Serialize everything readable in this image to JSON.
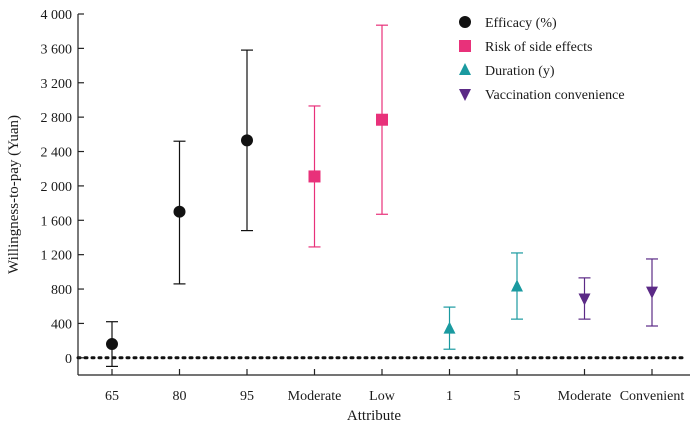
{
  "chart_data": {
    "type": "scatter",
    "title": "",
    "xlabel": "Attribute",
    "ylabel": "Willingness-to-pay (Yuan)",
    "ylim": [
      -200,
      4000
    ],
    "yticks": [
      0,
      400,
      800,
      1200,
      1600,
      2000,
      2400,
      2800,
      3200,
      3600,
      4000
    ],
    "ytick_labels": [
      "0",
      "400",
      "800",
      "1 200",
      "1 600",
      "2 000",
      "2 400",
      "2 800",
      "3 200",
      "3 600",
      "4 000"
    ],
    "categories": [
      "65",
      "80",
      "95",
      "Moderate",
      "Low",
      "1",
      "5",
      "Moderate",
      "Convenient"
    ],
    "reference_line": {
      "y": 0,
      "style": "dotted"
    },
    "grid": false,
    "legend_position": "top-right",
    "series": [
      {
        "name": "Efficacy (%)",
        "color": "#111111",
        "marker": "circle",
        "points": [
          {
            "category_index": 0,
            "label": "65",
            "y": 160,
            "low": -100,
            "high": 420
          },
          {
            "category_index": 1,
            "label": "80",
            "y": 1700,
            "low": 860,
            "high": 2520
          },
          {
            "category_index": 2,
            "label": "95",
            "y": 2530,
            "low": 1480,
            "high": 3580
          }
        ]
      },
      {
        "name": "Risk of side effects",
        "color": "#e8317a",
        "marker": "square",
        "points": [
          {
            "category_index": 3,
            "label": "Moderate",
            "y": 2110,
            "low": 1290,
            "high": 2930
          },
          {
            "category_index": 4,
            "label": "Low",
            "y": 2770,
            "low": 1670,
            "high": 3870
          }
        ]
      },
      {
        "name": "Duration (y)",
        "color": "#1a9aa0",
        "marker": "triangle-up",
        "points": [
          {
            "category_index": 5,
            "label": "1",
            "y": 340,
            "low": 100,
            "high": 590
          },
          {
            "category_index": 6,
            "label": "5",
            "y": 830,
            "low": 450,
            "high": 1220
          }
        ]
      },
      {
        "name": "Vaccination convenience",
        "color": "#5b2a86",
        "marker": "triangle-down",
        "points": [
          {
            "category_index": 7,
            "label": "Moderate",
            "y": 690,
            "low": 450,
            "high": 930
          },
          {
            "category_index": 8,
            "label": "Convenient",
            "y": 770,
            "low": 370,
            "high": 1150
          }
        ]
      }
    ]
  }
}
